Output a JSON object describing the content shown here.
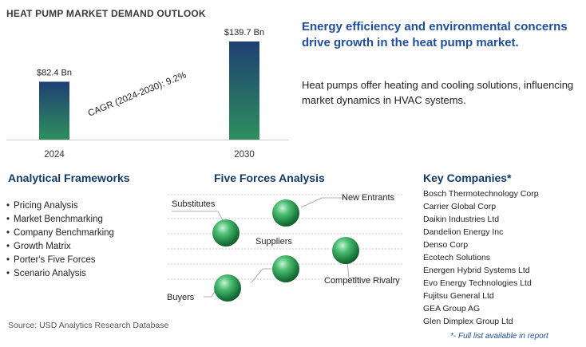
{
  "title": "HEAT PUMP MARKET DEMAND OUTLOOK",
  "chart_data": {
    "type": "bar",
    "categories": [
      "2024",
      "2030"
    ],
    "values": [
      82.4,
      139.7
    ],
    "value_labels": [
      "$82.4 Bn",
      "$139.7 Bn"
    ],
    "annotation": "CAGR (2024-2030):  9.2%",
    "title": "",
    "xlabel": "",
    "ylabel": "",
    "grid": false,
    "bar_color_top": "#1f3f73",
    "bar_color_bottom": "#2e8f5e"
  },
  "headline": "Energy efficiency and environmental concerns drive growth in the heat pump market.",
  "description": "Heat pumps offer heating and cooling solutions, influencing market dynamics in HVAC systems.",
  "analytical_frameworks": {
    "heading": "Analytical Frameworks",
    "items": [
      "Pricing Analysis",
      "Market Benchmarking",
      "Company Benchmarking",
      "Growth Matrix",
      "Porter's Five Forces",
      "Scenario Analysis"
    ]
  },
  "five_forces": {
    "heading": "Five Forces Analysis",
    "labels": {
      "substitutes": "Substitutes",
      "new_entrants": "New Entrants",
      "suppliers": "Suppliers",
      "competitive_rivalry": "Competitive Rivalry",
      "buyers": "Buyers"
    }
  },
  "key_companies": {
    "heading": "Key Companies*",
    "items": [
      "Bosch Thermotechnology Corp",
      "Carrier Global Corp",
      "Daikin Industries Ltd",
      "Dandelion Energy Inc",
      "Denso Corp",
      "Ecotech Solutions",
      "Energen Hybrid Systems Ltd",
      "Evo Energy Technologies Ltd",
      "Fujitsu General Ltd",
      "GEA Group AG",
      "Glen Dimplex Group Ltd"
    ],
    "note": "*- Full list available in report"
  },
  "source": "Source: USD Analytics Research Database"
}
